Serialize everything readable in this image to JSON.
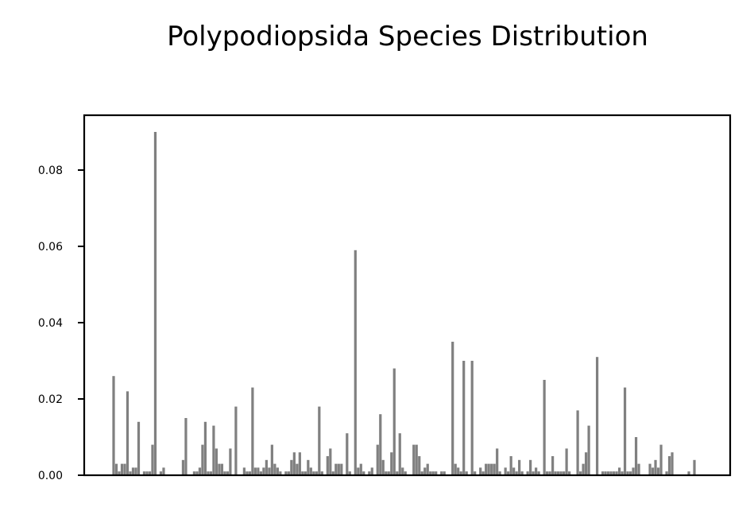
{
  "chart_data": {
    "type": "bar",
    "title": "Polypodiopsida Species Distribution",
    "xlabel": "",
    "ylabel": "",
    "ylim": [
      0,
      0.094
    ],
    "yticks": [
      "0.00",
      "0.02",
      "0.04",
      "0.06",
      "0.08"
    ],
    "ytick_values": [
      0,
      0.02,
      0.04,
      0.06,
      0.08
    ],
    "x_tick_labels_shown": false,
    "grid": false,
    "bar_color": "#808080",
    "values": [
      0.026,
      0.003,
      0.001,
      0.003,
      0.003,
      0.022,
      0.001,
      0.002,
      0.002,
      0.014,
      0.0,
      0.001,
      0.001,
      0.001,
      0.008,
      0.09,
      0.0,
      0.001,
      0.002,
      0.0,
      0.0,
      0.0,
      0.0,
      0.0,
      0.0,
      0.004,
      0.015,
      0.0,
      0.0,
      0.001,
      0.001,
      0.002,
      0.008,
      0.014,
      0.001,
      0.001,
      0.013,
      0.007,
      0.003,
      0.003,
      0.001,
      0.001,
      0.007,
      0.0,
      0.018,
      0.0,
      0.0,
      0.002,
      0.001,
      0.001,
      0.023,
      0.002,
      0.002,
      0.001,
      0.002,
      0.004,
      0.002,
      0.008,
      0.003,
      0.002,
      0.001,
      0.0,
      0.001,
      0.001,
      0.004,
      0.006,
      0.003,
      0.006,
      0.001,
      0.001,
      0.004,
      0.002,
      0.001,
      0.001,
      0.018,
      0.001,
      0.0,
      0.005,
      0.007,
      0.001,
      0.003,
      0.003,
      0.003,
      0.0,
      0.011,
      0.001,
      0.0,
      0.059,
      0.002,
      0.003,
      0.001,
      0.0,
      0.001,
      0.002,
      0.0,
      0.008,
      0.016,
      0.004,
      0.001,
      0.001,
      0.006,
      0.028,
      0.001,
      0.011,
      0.002,
      0.001,
      0.0,
      0.0,
      0.008,
      0.008,
      0.005,
      0.001,
      0.002,
      0.003,
      0.001,
      0.001,
      0.001,
      0.0,
      0.001,
      0.001,
      0.0,
      0.0,
      0.035,
      0.003,
      0.002,
      0.001,
      0.03,
      0.001,
      0.0,
      0.03,
      0.001,
      0.0,
      0.002,
      0.001,
      0.003,
      0.003,
      0.003,
      0.003,
      0.007,
      0.001,
      0.0,
      0.002,
      0.001,
      0.005,
      0.002,
      0.001,
      0.004,
      0.001,
      0.0,
      0.001,
      0.004,
      0.001,
      0.002,
      0.001,
      0.0,
      0.025,
      0.001,
      0.001,
      0.005,
      0.001,
      0.001,
      0.001,
      0.001,
      0.007,
      0.001,
      0.0,
      0.0,
      0.017,
      0.001,
      0.003,
      0.006,
      0.013,
      0.0,
      0.0,
      0.031,
      0.0,
      0.001,
      0.001,
      0.001,
      0.001,
      0.001,
      0.001,
      0.002,
      0.001,
      0.023,
      0.001,
      0.001,
      0.002,
      0.01,
      0.003,
      0.0,
      0.0,
      0.0,
      0.003,
      0.002,
      0.004,
      0.002,
      0.008,
      0.0,
      0.001,
      0.005,
      0.006,
      0.0,
      0.0,
      0.0,
      0.0,
      0.0,
      0.001,
      0.0,
      0.004
    ]
  }
}
